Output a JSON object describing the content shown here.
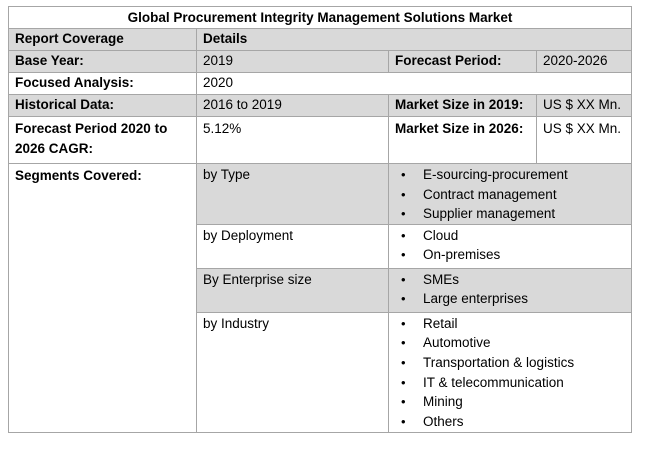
{
  "title": "Global Procurement Integrity Management Solutions Market",
  "header": {
    "col1": "Report Coverage",
    "col2": "Details"
  },
  "base_year": {
    "label": "Base Year:",
    "value": "2019"
  },
  "forecast_period": {
    "label": "Forecast Period:",
    "value": "2020-2026"
  },
  "focused_analysis": {
    "label": "Focused Analysis:",
    "value": "2020"
  },
  "historical_data": {
    "label": "Historical Data:",
    "value": "2016 to 2019"
  },
  "market_size_2019": {
    "label": "Market Size in 2019:",
    "value": "US $ XX Mn."
  },
  "cagr": {
    "label_line1": "Forecast Period 2020 to",
    "label_line2": "2026 CAGR:",
    "value": "5.12%"
  },
  "market_size_2026": {
    "label": "Market Size in 2026:",
    "value": "US $ XX Mn."
  },
  "segments": {
    "label": "Segments Covered:",
    "groups": [
      {
        "name": "by Type",
        "items": [
          "E-sourcing-procurement",
          "Contract management",
          "Supplier management"
        ]
      },
      {
        "name": "by Deployment",
        "items": [
          "Cloud",
          "On-premises"
        ]
      },
      {
        "name": "By Enterprise size",
        "items": [
          "SMEs",
          "Large enterprises"
        ]
      },
      {
        "name": "by Industry",
        "items": [
          "Retail",
          "Automotive",
          "Transportation & logistics",
          "IT & telecommunication",
          "Mining",
          "Others"
        ]
      }
    ]
  }
}
